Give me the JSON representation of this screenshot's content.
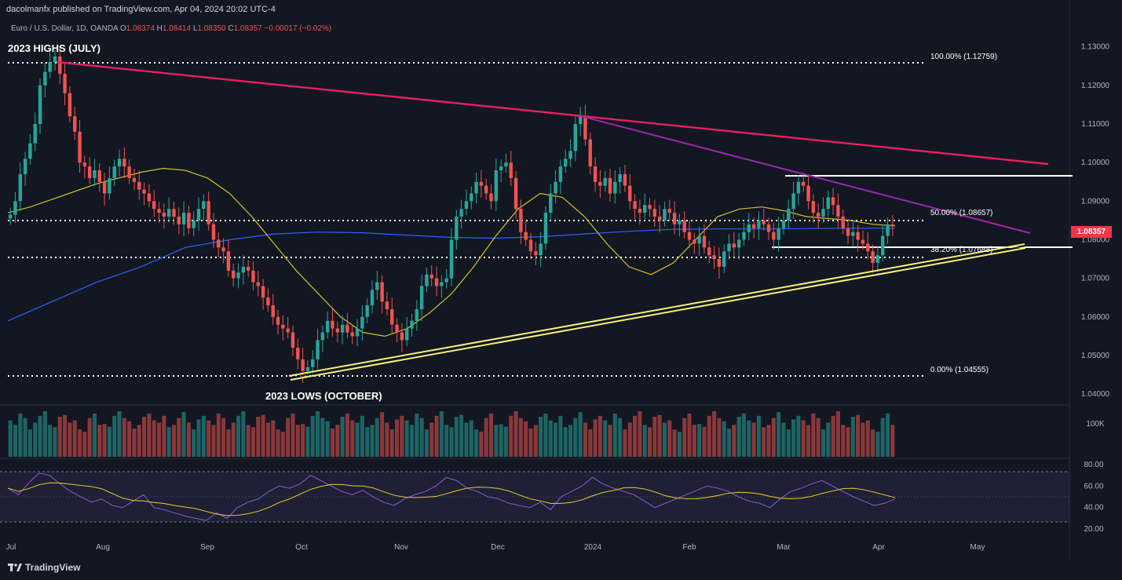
{
  "header": {
    "published": "dacolmanfx published on TradingView.com, Apr 04, 2024 20:02 UTC-4",
    "symbol": "Euro / U.S. Dollar, 1D, OANDA",
    "open_label": "O",
    "open": "1.08374",
    "high_label": "H",
    "high": "1.08414",
    "low_label": "L",
    "low": "1.08350",
    "close_label": "C",
    "close": "1.08357",
    "change": "−0.00017 (−0.02%)"
  },
  "annotations": {
    "highs": "2023 HIGHS (JULY)",
    "lows": "2023 LOWS (OCTOBER)"
  },
  "fib_levels": [
    {
      "label": "100.00% (1.12759)",
      "price": 1.12759
    },
    {
      "label": "50.00% (1.08657)",
      "price": 1.08657
    },
    {
      "label": "38.20% (1.07688)",
      "price": 1.07688
    },
    {
      "label": "0.00% (1.04555)",
      "price": 1.04555
    }
  ],
  "last_price": "1.08357",
  "footer": {
    "brand": "TradingView"
  },
  "colors": {
    "background": "#131722",
    "bull": "#26a69a",
    "bear": "#ef5350",
    "resistance_line": "#e91e63",
    "descending_line": "#9c27b0",
    "support_line": "#f5f07a",
    "sma_50": "#d4c02a",
    "sma_200": "#2962ff",
    "rsi": "#7e57c2",
    "rsi_ma": "#d4c02a"
  },
  "chart_data": [
    {
      "type": "candlestick",
      "title": "Euro / U.S. Dollar, 1D, OANDA",
      "y_ticks": [
        "1.13000",
        "1.12000",
        "1.11000",
        "1.10000",
        "1.09000",
        "1.08000",
        "1.07000",
        "1.06000",
        "1.05000",
        "1.04000"
      ],
      "x_ticks": [
        "Jul",
        "Aug",
        "Sep",
        "Oct",
        "Nov",
        "Dec",
        "2024",
        "Feb",
        "Mar",
        "Apr",
        "May"
      ],
      "ylim": [
        1.038,
        1.134
      ],
      "close_path": [
        1.0865,
        1.09,
        1.097,
        1.101,
        1.105,
        1.11,
        1.12,
        1.1235,
        1.126,
        1.1275,
        1.123,
        1.118,
        1.112,
        1.108,
        1.1,
        1.099,
        1.096,
        1.098,
        1.095,
        1.092,
        1.096,
        1.099,
        1.101,
        1.099,
        1.096,
        1.095,
        1.093,
        1.092,
        1.09,
        1.088,
        1.087,
        1.086,
        1.088,
        1.086,
        1.084,
        1.087,
        1.083,
        1.085,
        1.088,
        1.09,
        1.084,
        1.08,
        1.078,
        1.077,
        1.072,
        1.07,
        1.0715,
        1.073,
        1.072,
        1.069,
        1.068,
        1.065,
        1.063,
        1.06,
        1.058,
        1.057,
        1.056,
        1.052,
        1.049,
        1.046,
        1.047,
        1.049,
        1.054,
        1.056,
        1.059,
        1.057,
        1.056,
        1.058,
        1.056,
        1.055,
        1.057,
        1.06,
        1.063,
        1.067,
        1.069,
        1.064,
        1.062,
        1.058,
        1.056,
        1.054,
        1.057,
        1.059,
        1.062,
        1.068,
        1.071,
        1.07,
        1.068,
        1.069,
        1.07,
        1.08,
        1.086,
        1.088,
        1.09,
        1.092,
        1.095,
        1.094,
        1.092,
        1.09,
        1.098,
        1.099,
        1.1,
        1.096,
        1.088,
        1.082,
        1.08,
        1.077,
        1.076,
        1.079,
        1.087,
        1.092,
        1.095,
        1.099,
        1.101,
        1.103,
        1.11,
        1.112,
        1.106,
        1.099,
        1.095,
        1.094,
        1.096,
        1.092,
        1.095,
        1.097,
        1.094,
        1.09,
        1.088,
        1.087,
        1.089,
        1.088,
        1.086,
        1.085,
        1.088,
        1.087,
        1.084,
        1.085,
        1.082,
        1.08,
        1.079,
        1.081,
        1.078,
        1.076,
        1.075,
        1.073,
        1.077,
        1.079,
        1.078,
        1.08,
        1.082,
        1.084,
        1.083,
        1.085,
        1.084,
        1.082,
        1.08,
        1.083,
        1.085,
        1.088,
        1.092,
        1.095,
        1.094,
        1.09,
        1.087,
        1.086,
        1.088,
        1.091,
        1.089,
        1.086,
        1.083,
        1.081,
        1.082,
        1.08,
        1.079,
        1.077,
        1.074,
        1.076,
        1.081,
        1.084,
        1.0836
      ],
      "sma_50_path": [
        1.087,
        1.0885,
        1.0905,
        1.0925,
        1.0945,
        1.096,
        1.0975,
        1.0985,
        1.098,
        1.096,
        1.092,
        1.086,
        1.079,
        1.072,
        1.066,
        1.06,
        1.056,
        1.055,
        1.057,
        1.061,
        1.066,
        1.073,
        1.081,
        1.088,
        1.092,
        1.091,
        1.086,
        1.079,
        1.073,
        1.071,
        1.074,
        1.08,
        1.086,
        1.088,
        1.0885,
        1.0875,
        1.086,
        1.0855,
        1.085,
        1.084,
        1.0836
      ],
      "sma_200_path": [
        1.059,
        1.064,
        1.069,
        1.073,
        1.078,
        1.08,
        1.0815,
        1.082,
        1.0818,
        1.0812,
        1.0806,
        1.0804,
        1.0808,
        1.0815,
        1.0822,
        1.0827,
        1.0828,
        1.0828,
        1.0829,
        1.083,
        1.083
      ],
      "volume_label": "100K",
      "volume_sample": [
        80,
        70,
        95,
        85,
        60,
        75,
        90,
        100,
        70,
        65,
        88,
        92,
        75,
        80,
        60,
        55,
        85,
        95,
        70,
        72,
        66,
        90,
        100,
        85,
        78,
        62,
        70,
        88,
        95,
        80,
        75,
        90,
        65,
        70,
        85,
        98,
        75,
        60,
        82,
        90
      ],
      "rsi_ticks": [
        "80.00",
        "60.00",
        "40.00",
        "20.00"
      ],
      "rsi_ylim": [
        15,
        85
      ],
      "rsi_bands": [
        70,
        30
      ],
      "rsi_path": [
        58,
        52,
        63,
        72,
        70,
        62,
        55,
        50,
        45,
        48,
        42,
        40,
        46,
        52,
        40,
        38,
        35,
        32,
        30,
        28,
        35,
        30,
        40,
        45,
        48,
        55,
        60,
        58,
        62,
        70,
        65,
        60,
        55,
        52,
        56,
        50,
        45,
        42,
        48,
        52,
        55,
        60,
        68,
        65,
        58,
        55,
        50,
        48,
        44,
        42,
        40,
        45,
        38,
        50,
        55,
        60,
        68,
        62,
        58,
        55,
        52,
        46,
        40,
        44,
        48,
        52,
        56,
        60,
        58,
        55,
        50,
        46,
        44,
        40,
        48,
        55,
        58,
        62,
        65,
        60,
        55,
        50,
        46,
        42,
        44,
        48
      ]
    }
  ]
}
